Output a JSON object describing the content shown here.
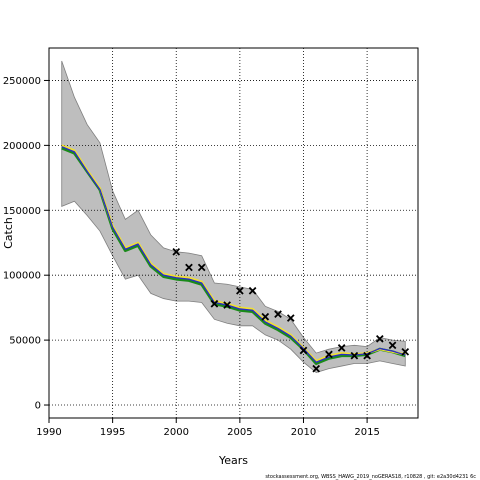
{
  "chart_data": {
    "type": "line",
    "xlabel": "Years",
    "ylabel": "Catch",
    "xlim": [
      1990,
      2019
    ],
    "ylim": [
      -10000,
      275000
    ],
    "x_ticks": [
      1990,
      1995,
      2000,
      2005,
      2010,
      2015
    ],
    "y_ticks": [
      0,
      50000,
      100000,
      150000,
      200000,
      250000
    ],
    "grid": true,
    "footer": "stockassessment.org,  WBSS_HAWG_2019_noGERAS18,  r10828 ,  git:  e2a30d4231 6c",
    "colors": {
      "band": "#bebebe",
      "band_edge": "#7f7f7f",
      "series_a": "#1a8a1a",
      "series_b": "#f0e033",
      "series_c": "#2a2acc",
      "observed": "#000000"
    },
    "confidence_band": {
      "x": [
        1991,
        1992,
        1993,
        1994,
        1995,
        1996,
        1997,
        1998,
        1999,
        2000,
        2001,
        2002,
        2003,
        2004,
        2005,
        2006,
        2007,
        2008,
        2009,
        2010,
        2011,
        2012,
        2013,
        2014,
        2015,
        2016,
        2017,
        2018
      ],
      "upper": [
        265000,
        237000,
        216000,
        202000,
        165000,
        143000,
        150000,
        131000,
        121000,
        118000,
        117000,
        115000,
        94000,
        93000,
        91000,
        89000,
        76000,
        72000,
        66000,
        52000,
        40000,
        43000,
        45000,
        46000,
        45000,
        52000,
        50000,
        49000
      ],
      "lower": [
        153000,
        157000,
        146000,
        134000,
        115000,
        97000,
        100000,
        86000,
        82000,
        80000,
        80000,
        79000,
        66000,
        63000,
        61000,
        61000,
        54000,
        50000,
        43000,
        33000,
        25000,
        28000,
        30000,
        32000,
        32000,
        34000,
        32000,
        30000
      ]
    },
    "series": [
      {
        "values": [
          198000,
          194000,
          180000,
          166000,
          136000,
          119000,
          123000,
          107000,
          99000,
          97000,
          96000,
          93000,
          78000,
          76000,
          73000,
          72000,
          63000,
          58000,
          52000,
          43000,
          32000,
          36000,
          38000,
          38000,
          39000,
          43000,
          41000,
          38000
        ]
      },
      {
        "values": [
          200000,
          196000,
          181000,
          167000,
          138000,
          121000,
          125000,
          109000,
          101000,
          99000,
          98000,
          95000,
          80000,
          78000,
          75000,
          74000,
          65000,
          60000,
          54000,
          44000,
          34000,
          38000,
          40000,
          39000,
          40000,
          43000,
          41000,
          39000
        ]
      },
      {
        "values": [
          199000,
          195000,
          180000,
          166000,
          137000,
          120000,
          124000,
          108000,
          100000,
          98000,
          97000,
          94000,
          79000,
          77000,
          74000,
          73000,
          64000,
          59000,
          53000,
          43500,
          33000,
          37000,
          39000,
          38500,
          39500,
          43500,
          41500,
          38500
        ]
      }
    ],
    "observed": {
      "x": [
        2000,
        2001,
        2002,
        2003,
        2004,
        2005,
        2006,
        2007,
        2008,
        2009,
        2010,
        2011,
        2012,
        2013,
        2014,
        2015,
        2016,
        2017,
        2018
      ],
      "y": [
        118000,
        106000,
        106000,
        78000,
        77000,
        88000,
        88000,
        68000,
        70000,
        67000,
        42000,
        28000,
        39000,
        44000,
        38000,
        38000,
        51000,
        46000,
        41000
      ]
    }
  }
}
